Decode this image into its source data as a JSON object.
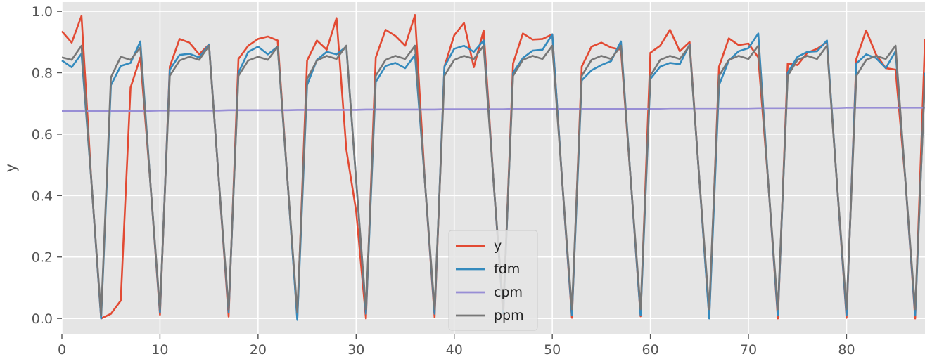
{
  "chart_data": {
    "type": "line",
    "title": "",
    "xlabel": "",
    "ylabel": "y",
    "xlim": [
      0,
      88
    ],
    "ylim": [
      -0.05,
      1.03
    ],
    "xticks": [
      0,
      10,
      20,
      30,
      40,
      50,
      60,
      70,
      80
    ],
    "yticks": [
      0.0,
      0.2,
      0.4,
      0.6,
      0.8,
      1.0
    ],
    "xtick_labels": [
      "0",
      "10",
      "20",
      "30",
      "40",
      "50",
      "60",
      "70",
      "80"
    ],
    "ytick_labels": [
      "0.0",
      "0.2",
      "0.4",
      "0.6",
      "0.8",
      "1.0"
    ],
    "grid": true,
    "style": "ggplot",
    "legend_position": "lower-center",
    "x": [
      0,
      1,
      2,
      3,
      4,
      5,
      6,
      7,
      8,
      9,
      10,
      11,
      12,
      13,
      14,
      15,
      16,
      17,
      18,
      19,
      20,
      21,
      22,
      23,
      24,
      25,
      26,
      27,
      28,
      29,
      30,
      31,
      32,
      33,
      34,
      35,
      36,
      37,
      38,
      39,
      40,
      41,
      42,
      43,
      44,
      45,
      46,
      47,
      48,
      49,
      50,
      51,
      52,
      53,
      54,
      55,
      56,
      57,
      58,
      59,
      60,
      61,
      62,
      63,
      64,
      65,
      66,
      67,
      68,
      69,
      70,
      71,
      72,
      73,
      74,
      75,
      76,
      77,
      78,
      79,
      80,
      81,
      82,
      83,
      84,
      85,
      86,
      87,
      88
    ],
    "series": [
      {
        "name": "y",
        "color": "#e24a33",
        "values": [
          0.935,
          0.898,
          0.985,
          0.45,
          0.0,
          0.015,
          0.058,
          0.752,
          0.85,
          0.45,
          0.012,
          0.82,
          0.91,
          0.898,
          0.86,
          0.892,
          0.45,
          0.006,
          0.845,
          0.888,
          0.91,
          0.918,
          0.905,
          0.45,
          0.0,
          0.84,
          0.905,
          0.875,
          0.978,
          0.55,
          0.35,
          0.0,
          0.85,
          0.94,
          0.92,
          0.888,
          0.988,
          0.45,
          0.004,
          0.82,
          0.922,
          0.962,
          0.818,
          0.938,
          0.45,
          0.01,
          0.83,
          0.928,
          0.908,
          0.91,
          0.925,
          0.45,
          0.002,
          0.82,
          0.885,
          0.898,
          0.882,
          0.875,
          0.45,
          0.007,
          0.865,
          0.888,
          0.94,
          0.87,
          0.9,
          0.45,
          0.003,
          0.82,
          0.912,
          0.89,
          0.895,
          0.85,
          0.45,
          0.0,
          0.83,
          0.825,
          0.865,
          0.878,
          0.9,
          0.45,
          0.002,
          0.845,
          0.938,
          0.86,
          0.815,
          0.81,
          0.45,
          0.0,
          0.91
        ]
      },
      {
        "name": "fdm",
        "color": "#348abd",
        "values": [
          0.84,
          0.818,
          0.862,
          0.45,
          0.0,
          0.76,
          0.822,
          0.832,
          0.902,
          0.45,
          0.02,
          0.81,
          0.858,
          0.862,
          0.85,
          0.892,
          0.45,
          0.02,
          0.8,
          0.868,
          0.885,
          0.86,
          0.885,
          0.45,
          -0.005,
          0.76,
          0.842,
          0.868,
          0.86,
          0.885,
          0.45,
          0.015,
          0.77,
          0.822,
          0.832,
          0.815,
          0.858,
          0.45,
          0.015,
          0.82,
          0.878,
          0.888,
          0.868,
          0.905,
          0.45,
          0.015,
          0.8,
          0.848,
          0.872,
          0.875,
          0.925,
          0.45,
          0.01,
          0.775,
          0.808,
          0.825,
          0.838,
          0.902,
          0.45,
          0.01,
          0.78,
          0.82,
          0.832,
          0.828,
          0.892,
          0.45,
          0.0,
          0.76,
          0.84,
          0.87,
          0.88,
          0.928,
          0.45,
          0.01,
          0.8,
          0.852,
          0.868,
          0.87,
          0.905,
          0.45,
          0.01,
          0.83,
          0.86,
          0.848,
          0.815,
          0.87,
          0.45,
          0.01,
          0.8
        ]
      },
      {
        "name": "cpm",
        "color": "#988ed5",
        "values": [
          0.675,
          0.675,
          0.675,
          0.675,
          0.676,
          0.676,
          0.676,
          0.676,
          0.676,
          0.676,
          0.677,
          0.677,
          0.677,
          0.677,
          0.677,
          0.677,
          0.677,
          0.678,
          0.678,
          0.678,
          0.678,
          0.678,
          0.678,
          0.678,
          0.679,
          0.679,
          0.679,
          0.679,
          0.679,
          0.679,
          0.679,
          0.68,
          0.68,
          0.68,
          0.68,
          0.68,
          0.68,
          0.68,
          0.68,
          0.681,
          0.681,
          0.681,
          0.681,
          0.681,
          0.681,
          0.681,
          0.682,
          0.682,
          0.682,
          0.682,
          0.682,
          0.682,
          0.682,
          0.682,
          0.683,
          0.683,
          0.683,
          0.683,
          0.683,
          0.683,
          0.683,
          0.683,
          0.684,
          0.684,
          0.684,
          0.684,
          0.684,
          0.684,
          0.684,
          0.684,
          0.684,
          0.685,
          0.685,
          0.685,
          0.685,
          0.685,
          0.685,
          0.685,
          0.685,
          0.685,
          0.686,
          0.686,
          0.686,
          0.686,
          0.686,
          0.686,
          0.686,
          0.686,
          0.686
        ]
      },
      {
        "name": "ppm",
        "color": "#777777",
        "values": [
          0.85,
          0.842,
          0.888,
          0.45,
          0.01,
          0.785,
          0.852,
          0.842,
          0.882,
          0.45,
          0.03,
          0.79,
          0.84,
          0.852,
          0.842,
          0.888,
          0.45,
          0.03,
          0.79,
          0.84,
          0.852,
          0.842,
          0.885,
          0.45,
          0.02,
          0.78,
          0.84,
          0.855,
          0.845,
          0.888,
          0.45,
          0.03,
          0.79,
          0.842,
          0.855,
          0.845,
          0.888,
          0.45,
          0.03,
          0.79,
          0.842,
          0.855,
          0.845,
          0.888,
          0.45,
          0.03,
          0.79,
          0.842,
          0.855,
          0.845,
          0.888,
          0.45,
          0.03,
          0.79,
          0.842,
          0.855,
          0.845,
          0.888,
          0.45,
          0.03,
          0.79,
          0.842,
          0.855,
          0.845,
          0.888,
          0.45,
          0.03,
          0.79,
          0.842,
          0.855,
          0.845,
          0.888,
          0.45,
          0.03,
          0.79,
          0.842,
          0.855,
          0.845,
          0.888,
          0.45,
          0.03,
          0.79,
          0.842,
          0.855,
          0.845,
          0.888,
          0.45,
          0.03,
          0.79
        ]
      }
    ]
  }
}
